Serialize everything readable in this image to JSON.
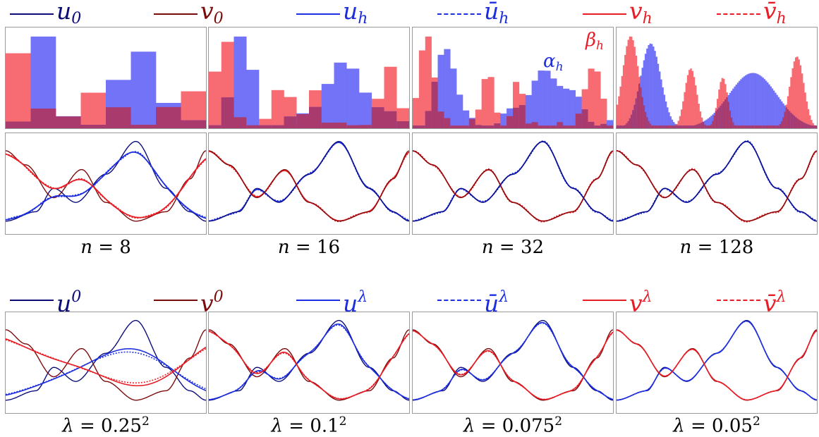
{
  "colors": {
    "u0": "#0b0b7a",
    "v0": "#7a0b0b",
    "uh": "#1c2ee0",
    "vh": "#e81c25",
    "hist_blue": "#6c6cf7",
    "hist_red": "#f7646b",
    "hist_overlap": "#a83a6e"
  },
  "legend_top": [
    {
      "sym": "u",
      "sub": "0",
      "style": "solid",
      "color_key": "u0"
    },
    {
      "sym": "v",
      "sub": "0",
      "style": "solid",
      "color_key": "v0"
    },
    {
      "sym": "u",
      "sub": "h",
      "style": "solid",
      "color_key": "uh"
    },
    {
      "sym": "ū",
      "sub": "h",
      "style": "dotted",
      "color_key": "uh"
    },
    {
      "sym": "v",
      "sub": "h",
      "style": "solid",
      "color_key": "vh"
    },
    {
      "sym": "v̄",
      "sub": "h",
      "style": "dotted",
      "color_key": "vh"
    }
  ],
  "legend_bottom": [
    {
      "sym": "u",
      "sup": "0",
      "style": "solid",
      "color_key": "u0"
    },
    {
      "sym": "v",
      "sup": "0",
      "style": "solid",
      "color_key": "v0"
    },
    {
      "sym": "u",
      "sup": "λ",
      "style": "solid",
      "color_key": "uh"
    },
    {
      "sym": "ū",
      "sup": "λ",
      "style": "dotted",
      "color_key": "uh"
    },
    {
      "sym": "v",
      "sup": "λ",
      "style": "solid",
      "color_key": "vh"
    },
    {
      "sym": "v̄",
      "sup": "λ",
      "style": "dotted",
      "color_key": "vh"
    }
  ],
  "annotations": {
    "alpha": {
      "sym": "α",
      "sub": "h"
    },
    "beta": {
      "sym": "β",
      "sub": "h"
    }
  },
  "panel_labels_top": [
    {
      "lhs": "n",
      "eq": " = ",
      "val": "8"
    },
    {
      "lhs": "n",
      "eq": " = ",
      "val": "16"
    },
    {
      "lhs": "n",
      "eq": " = ",
      "val": "32"
    },
    {
      "lhs": "n",
      "eq": " = ",
      "val": "128"
    }
  ],
  "panel_labels_bottom": [
    {
      "lhs": "λ",
      "eq": " = ",
      "val": "0.25",
      "sup": "2"
    },
    {
      "lhs": "λ",
      "eq": " = ",
      "val": "0.1",
      "sup": "2"
    },
    {
      "lhs": "λ",
      "eq": " = ",
      "val": "0.075",
      "sup": "2"
    },
    {
      "lhs": "λ",
      "eq": " = ",
      "val": "0.05",
      "sup": "2"
    }
  ],
  "chart_data": [
    {
      "type": "area",
      "panel_group": "histograms",
      "n_bins": [
        8,
        16,
        32,
        128
      ],
      "series": [
        {
          "name": "α_h",
          "center": 0.68,
          "width": 0.12,
          "plateau": 0.6,
          "bump": [
            0.17,
            0.05,
            0.92
          ]
        },
        {
          "name": "β_h",
          "peaks": [
            [
              0.07,
              0.04,
              1.0
            ],
            [
              0.37,
              0.03,
              0.65
            ],
            [
              0.53,
              0.025,
              0.55
            ],
            [
              0.9,
              0.035,
              0.78
            ]
          ]
        }
      ]
    },
    {
      "type": "line",
      "panel_group": "curves_h",
      "x_range": [
        0,
        1
      ],
      "n_values": [
        8,
        16,
        32,
        128
      ],
      "series_names": [
        "u_0",
        "v_0",
        "u_h",
        "ū_h",
        "v_h",
        "v̄_h"
      ],
      "u0_keypoints": [
        [
          0,
          0.1
        ],
        [
          0.15,
          0.2
        ],
        [
          0.24,
          0.45
        ],
        [
          0.35,
          0.3
        ],
        [
          0.5,
          0.6
        ],
        [
          0.65,
          0.95
        ],
        [
          0.8,
          0.45
        ],
        [
          0.92,
          0.2
        ],
        [
          1.0,
          0.1
        ]
      ],
      "v0_keypoints": [
        [
          0,
          0.85
        ],
        [
          0.1,
          0.7
        ],
        [
          0.24,
          0.35
        ],
        [
          0.38,
          0.65
        ],
        [
          0.5,
          0.3
        ],
        [
          0.65,
          0.1
        ],
        [
          0.8,
          0.2
        ],
        [
          0.92,
          0.55
        ],
        [
          1.0,
          0.85
        ]
      ]
    },
    {
      "type": "line",
      "panel_group": "curves_lambda",
      "x_range": [
        0,
        1
      ],
      "lambda_values": [
        "0.25^2",
        "0.1^2",
        "0.075^2",
        "0.05^2"
      ],
      "series_names": [
        "u^0",
        "v^0",
        "u^λ",
        "ū^λ",
        "v^λ",
        "v̄^λ"
      ]
    }
  ]
}
